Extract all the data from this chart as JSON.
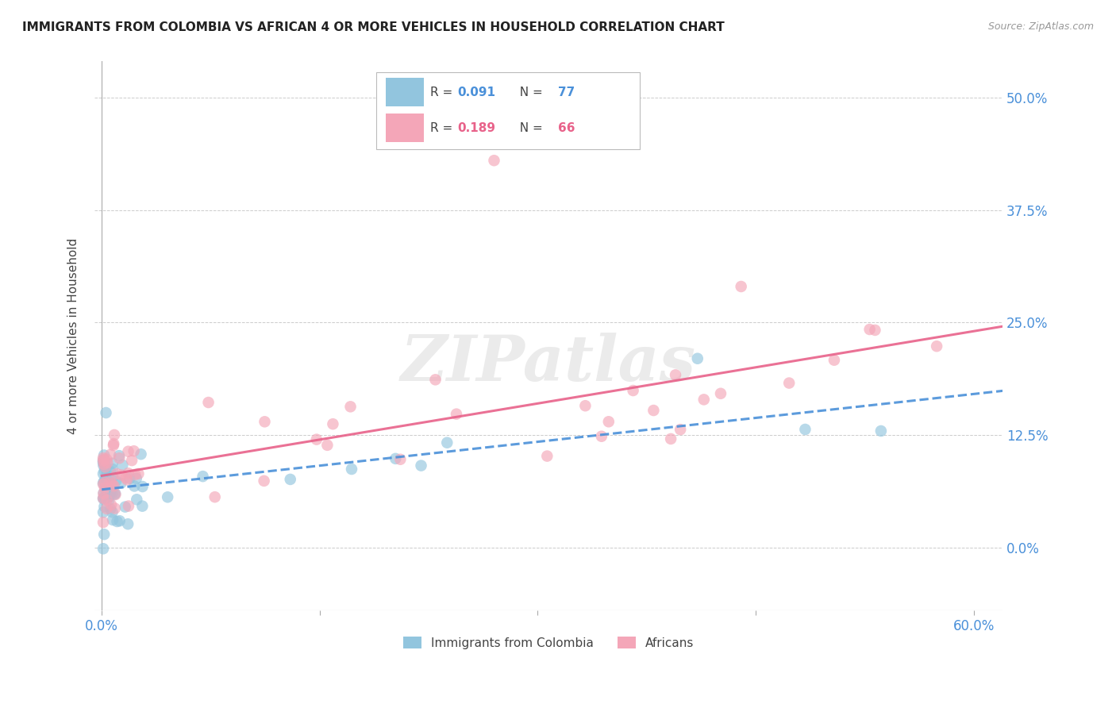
{
  "title": "IMMIGRANTS FROM COLOMBIA VS AFRICAN 4 OR MORE VEHICLES IN HOUSEHOLD CORRELATION CHART",
  "source": "Source: ZipAtlas.com",
  "ylabel": "4 or more Vehicles in Household",
  "colombia_R": 0.091,
  "colombia_N": 77,
  "africans_R": 0.189,
  "africans_N": 66,
  "colombia_color": "#92C5DE",
  "africans_color": "#F4A6B8",
  "colombia_line_color": "#4A90D9",
  "africans_line_color": "#E8628A",
  "background_color": "#FFFFFF",
  "grid_color": "#CCCCCC",
  "xlim": [
    -0.005,
    0.62
  ],
  "ylim": [
    -0.07,
    0.54
  ],
  "ytick_values": [
    0.0,
    0.125,
    0.25,
    0.375,
    0.5
  ],
  "ytick_labels": [
    "0.0%",
    "12.5%",
    "25.0%",
    "37.5%",
    "50.0%"
  ],
  "xtick_values": [
    0.0,
    0.6
  ],
  "xtick_labels": [
    "0.0%",
    "60.0%"
  ]
}
